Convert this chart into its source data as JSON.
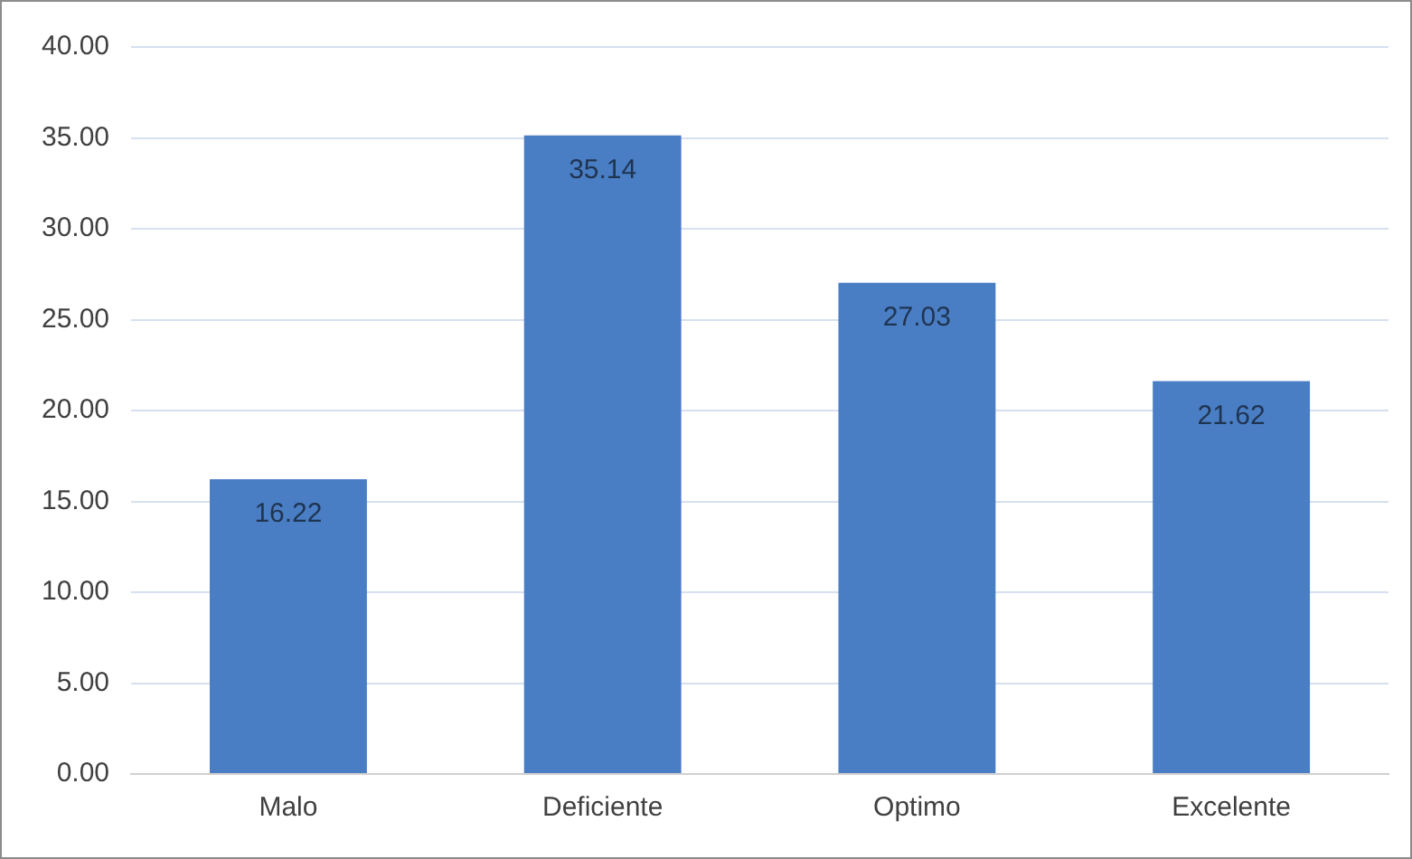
{
  "chart_data": {
    "type": "bar",
    "categories": [
      "Malo",
      "Deficiente",
      "Optimo",
      "Excelente"
    ],
    "values": [
      16.22,
      35.14,
      27.03,
      21.62
    ],
    "color": "#4a7ec4",
    "ylim": [
      0,
      40
    ],
    "yticks": [
      {
        "value": 0,
        "label": "0.00"
      },
      {
        "value": 5,
        "label": "5.00"
      },
      {
        "value": 10,
        "label": "10.00"
      },
      {
        "value": 15,
        "label": "15.00"
      },
      {
        "value": 20,
        "label": "20.00"
      },
      {
        "value": 25,
        "label": "25.00"
      },
      {
        "value": 30,
        "label": "30.00"
      },
      {
        "value": 35,
        "label": "35.00"
      },
      {
        "value": 40,
        "label": "40.00"
      }
    ],
    "grid": "y",
    "data_labels": true
  }
}
